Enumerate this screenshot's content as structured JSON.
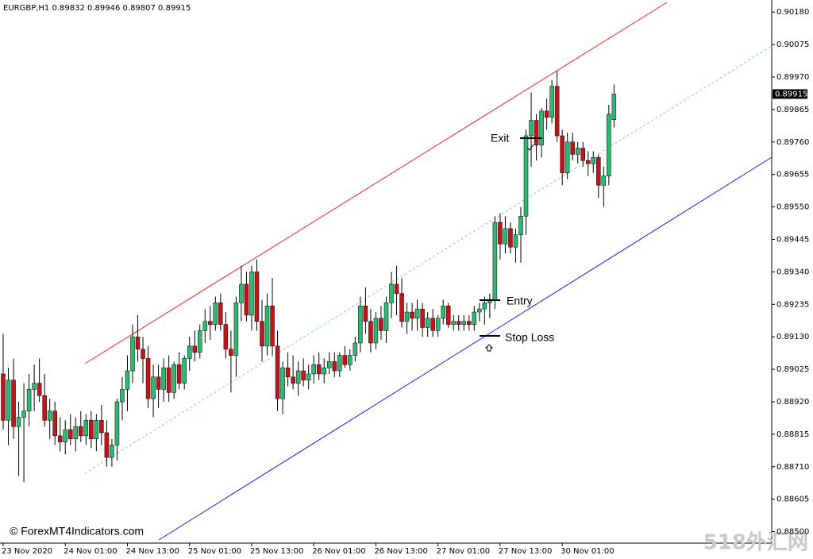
{
  "chart_data": {
    "type": "candlestick",
    "header": "EURGBP,H1  0.89832 0.89946 0.89807 0.89915",
    "current_price": 0.89915,
    "annotations": {
      "exit": "Exit",
      "entry": "Entry",
      "stop_loss": "Stop Loss"
    },
    "watermark": "© ForexMT4Indicators.com",
    "corner_mark": "518外汇网",
    "up_color": "#2eb872",
    "down_color": "#c0161b",
    "ylim": [
      0.88463,
      0.90219
    ],
    "yticks": [
      {
        "value": 0.9018,
        "label": "0.90180"
      },
      {
        "value": 0.90075,
        "label": "0.90075"
      },
      {
        "value": 0.8997,
        "label": "0.89970"
      },
      {
        "value": 0.89865,
        "label": "0.89865"
      },
      {
        "value": 0.8976,
        "label": "0.89760"
      },
      {
        "value": 0.89655,
        "label": "0.89655"
      },
      {
        "value": 0.8955,
        "label": "0.89550"
      },
      {
        "value": 0.89445,
        "label": "0.89445"
      },
      {
        "value": 0.8934,
        "label": "0.89340"
      },
      {
        "value": 0.89235,
        "label": "0.89235"
      },
      {
        "value": 0.8913,
        "label": "0.89130"
      },
      {
        "value": 0.89025,
        "label": "0.89025"
      },
      {
        "value": 0.8892,
        "label": "0.88920"
      },
      {
        "value": 0.88815,
        "label": "0.88815"
      },
      {
        "value": 0.8871,
        "label": "0.88710"
      },
      {
        "value": 0.88605,
        "label": "0.88605"
      },
      {
        "value": 0.885,
        "label": "0.88500"
      }
    ],
    "categories": [
      "23 Nov 2020",
      null,
      null,
      null,
      null,
      null,
      null,
      null,
      null,
      null,
      null,
      null,
      "24 Nov 01:00",
      null,
      null,
      null,
      null,
      null,
      null,
      null,
      null,
      null,
      null,
      null,
      "24 Nov 13:00",
      null,
      null,
      null,
      null,
      null,
      null,
      null,
      null,
      null,
      null,
      null,
      "25 Nov 01:00",
      null,
      null,
      null,
      null,
      null,
      null,
      null,
      null,
      null,
      null,
      null,
      "25 Nov 13:00",
      null,
      null,
      null,
      null,
      null,
      null,
      null,
      null,
      null,
      null,
      null,
      "26 Nov 01:00",
      null,
      null,
      null,
      null,
      null,
      null,
      null,
      null,
      null,
      null,
      null,
      "26 Nov 13:00",
      null,
      null,
      null,
      null,
      null,
      null,
      null,
      null,
      null,
      null,
      null,
      "27 Nov 01:00",
      null,
      null,
      null,
      null,
      null,
      null,
      null,
      null,
      null,
      null,
      null,
      "27 Nov 13:00",
      null,
      null,
      null,
      null,
      null,
      null,
      null,
      null,
      null,
      null,
      null,
      "30 Nov 01:00",
      null,
      null,
      null,
      null,
      null,
      null,
      null,
      null,
      null,
      null
    ],
    "open": [
      0.8901,
      0.8886,
      0.8899,
      0.8884,
      0.8887,
      0.8889,
      0.8896,
      0.8898,
      0.8894,
      0.8886,
      0.8889,
      0.8881,
      0.8879,
      0.8883,
      0.888,
      0.8884,
      0.8881,
      0.8886,
      0.888,
      0.8886,
      0.8882,
      0.8874,
      0.8878,
      0.8892,
      0.8896,
      0.8902,
      0.8913,
      0.8909,
      0.8906,
      0.8893,
      0.89,
      0.8896,
      0.8903,
      0.8895,
      0.8904,
      0.8898,
      0.8906,
      0.891,
      0.8908,
      0.8915,
      0.8918,
      0.8917,
      0.8924,
      0.8917,
      0.8909,
      0.8907,
      0.8924,
      0.893,
      0.892,
      0.8934,
      0.8918,
      0.891,
      0.8923,
      0.891,
      0.8893,
      0.8903,
      0.89,
      0.8898,
      0.8902,
      0.8899,
      0.8901,
      0.8904,
      0.8901,
      0.8903,
      0.8905,
      0.8902,
      0.8907,
      0.8904,
      0.8907,
      0.8911,
      0.8923,
      0.8918,
      0.8911,
      0.8919,
      0.8915,
      0.8924,
      0.893,
      0.8927,
      0.8918,
      0.8921,
      0.8919,
      0.8922,
      0.8916,
      0.8919,
      0.8915,
      0.8919,
      0.8923,
      0.8917,
      0.8918,
      0.8917,
      0.8918,
      0.8917,
      0.8921,
      0.8922,
      0.8924,
      0.8925,
      0.895,
      0.8943,
      0.8948,
      0.8942,
      0.8946,
      0.8952,
      0.8978,
      0.8983,
      0.8975,
      0.8986,
      0.8984,
      0.8994,
      0.8978,
      0.8966,
      0.8976,
      0.8972,
      0.8974,
      0.897,
      0.8969,
      0.8971,
      0.8962,
      0.8965,
      0.89832
    ],
    "high": [
      0.8914,
      0.8903,
      0.8906,
      0.8892,
      0.8898,
      0.8901,
      0.8904,
      0.8906,
      0.8901,
      0.8893,
      0.8892,
      0.8887,
      0.8886,
      0.8888,
      0.8887,
      0.8889,
      0.8888,
      0.8889,
      0.8888,
      0.8891,
      0.8886,
      0.888,
      0.8893,
      0.89,
      0.8907,
      0.8917,
      0.892,
      0.8913,
      0.891,
      0.8904,
      0.8904,
      0.8906,
      0.8907,
      0.8905,
      0.8908,
      0.8907,
      0.8913,
      0.8915,
      0.8917,
      0.8922,
      0.8923,
      0.8926,
      0.8927,
      0.8921,
      0.8915,
      0.8926,
      0.8936,
      0.8934,
      0.8936,
      0.8938,
      0.8925,
      0.8927,
      0.8932,
      0.8915,
      0.8905,
      0.8908,
      0.8907,
      0.8905,
      0.8906,
      0.8904,
      0.8907,
      0.8908,
      0.8906,
      0.8908,
      0.8908,
      0.8908,
      0.891,
      0.8909,
      0.8913,
      0.8926,
      0.8929,
      0.8922,
      0.8921,
      0.8923,
      0.8926,
      0.8934,
      0.8936,
      0.8932,
      0.8924,
      0.8924,
      0.8925,
      0.8924,
      0.8921,
      0.8922,
      0.892,
      0.8925,
      0.8924,
      0.892,
      0.892,
      0.892,
      0.892,
      0.8923,
      0.8924,
      0.8926,
      0.8927,
      0.8952,
      0.8953,
      0.8952,
      0.895,
      0.8948,
      0.8955,
      0.898,
      0.8992,
      0.8985,
      0.8987,
      0.899,
      0.8996,
      0.8999,
      0.898,
      0.8979,
      0.8979,
      0.8976,
      0.8976,
      0.8973,
      0.8973,
      0.8972,
      0.8968,
      0.8988,
      0.89946
    ],
    "low": [
      0.8883,
      0.8878,
      0.888,
      0.8868,
      0.8866,
      0.8884,
      0.8889,
      0.8892,
      0.8884,
      0.888,
      0.8878,
      0.8876,
      0.8875,
      0.8878,
      0.8876,
      0.8879,
      0.8878,
      0.8877,
      0.8876,
      0.8878,
      0.8871,
      0.8871,
      0.8873,
      0.8886,
      0.8889,
      0.8898,
      0.8905,
      0.8898,
      0.889,
      0.8887,
      0.889,
      0.8892,
      0.8892,
      0.8893,
      0.8896,
      0.8896,
      0.8902,
      0.8905,
      0.8906,
      0.8911,
      0.8912,
      0.8915,
      0.8915,
      0.8906,
      0.8895,
      0.89,
      0.8918,
      0.8918,
      0.8915,
      0.8915,
      0.8905,
      0.8907,
      0.8907,
      0.8889,
      0.8888,
      0.8897,
      0.8896,
      0.8894,
      0.8897,
      0.8896,
      0.8898,
      0.8899,
      0.8898,
      0.8901,
      0.89,
      0.89,
      0.8903,
      0.8902,
      0.8905,
      0.8908,
      0.8914,
      0.8908,
      0.8909,
      0.8912,
      0.8911,
      0.8919,
      0.892,
      0.8916,
      0.8914,
      0.8915,
      0.8915,
      0.8913,
      0.8913,
      0.8913,
      0.8913,
      0.8917,
      0.8916,
      0.8915,
      0.8915,
      0.8915,
      0.8915,
      0.8915,
      0.8918,
      0.8917,
      0.8919,
      0.8922,
      0.8938,
      0.894,
      0.894,
      0.8937,
      0.8937,
      0.8946,
      0.8968,
      0.897,
      0.8971,
      0.898,
      0.8982,
      0.8976,
      0.8962,
      0.8964,
      0.897,
      0.8969,
      0.8968,
      0.8965,
      0.8966,
      0.8958,
      0.8955,
      0.8962,
      0.89807
    ],
    "close": [
      0.8886,
      0.8899,
      0.8884,
      0.8887,
      0.8889,
      0.8896,
      0.8898,
      0.8894,
      0.8886,
      0.8889,
      0.8881,
      0.8879,
      0.8883,
      0.888,
      0.8884,
      0.8881,
      0.8886,
      0.888,
      0.8886,
      0.8882,
      0.8874,
      0.8878,
      0.8892,
      0.8896,
      0.8902,
      0.8913,
      0.8909,
      0.8906,
      0.8893,
      0.89,
      0.8896,
      0.8903,
      0.8895,
      0.8904,
      0.8898,
      0.8906,
      0.891,
      0.8908,
      0.8915,
      0.8918,
      0.8917,
      0.8924,
      0.8917,
      0.8909,
      0.8907,
      0.8924,
      0.893,
      0.892,
      0.8934,
      0.8918,
      0.891,
      0.8923,
      0.891,
      0.8893,
      0.8903,
      0.89,
      0.8898,
      0.8902,
      0.8899,
      0.8901,
      0.8904,
      0.8901,
      0.8903,
      0.8905,
      0.8902,
      0.8907,
      0.8904,
      0.8907,
      0.8911,
      0.8923,
      0.8918,
      0.8911,
      0.8919,
      0.8915,
      0.8924,
      0.893,
      0.8927,
      0.8918,
      0.8921,
      0.8919,
      0.8922,
      0.8916,
      0.8919,
      0.8915,
      0.8919,
      0.8923,
      0.8917,
      0.8918,
      0.8917,
      0.8918,
      0.8917,
      0.8921,
      0.8922,
      0.8924,
      0.8925,
      0.895,
      0.8943,
      0.8948,
      0.8942,
      0.8946,
      0.8952,
      0.8978,
      0.8983,
      0.8975,
      0.8986,
      0.8984,
      0.8994,
      0.8978,
      0.8966,
      0.8976,
      0.8972,
      0.8974,
      0.897,
      0.8969,
      0.8971,
      0.8962,
      0.8965,
      0.8985,
      0.89915
    ]
  }
}
